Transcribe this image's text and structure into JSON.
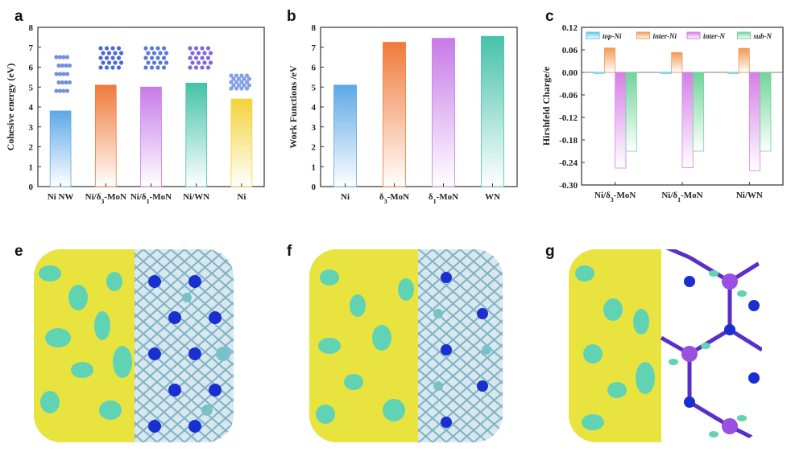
{
  "panels": {
    "a": "a",
    "b": "b",
    "c": "c",
    "e": "e",
    "f": "f",
    "g": "g"
  },
  "chart_data": [
    {
      "type": "bar",
      "title": "",
      "xlabel": "",
      "ylabel": "Cohesive energy (eV)",
      "categories": [
        "Ni NW",
        "Ni/δ3-MoN",
        "Ni/δ1-MoN",
        "Ni/WN",
        "Ni"
      ],
      "values": [
        3.8,
        5.1,
        5.0,
        5.2,
        4.4
      ],
      "colors": [
        "#5ea8e6",
        "#f07a3a",
        "#c77ae8",
        "#45c2a8",
        "#f3d23a"
      ],
      "ylim": [
        0,
        8
      ],
      "yticks": [
        0,
        1,
        2,
        3,
        4,
        5,
        6,
        7,
        8
      ]
    },
    {
      "type": "bar",
      "title": "",
      "xlabel": "",
      "ylabel": "Work Functions /eV",
      "categories": [
        "Ni",
        "δ3-MoN",
        "δ1-MoN",
        "WN"
      ],
      "values": [
        5.1,
        7.25,
        7.45,
        7.55
      ],
      "colors": [
        "#5ea8e6",
        "#f07a3a",
        "#c77ae8",
        "#45c2a8"
      ],
      "ylim": [
        0,
        8
      ],
      "yticks": [
        0,
        1,
        2,
        3,
        4,
        5,
        6,
        7,
        8
      ]
    },
    {
      "type": "bar",
      "title": "",
      "xlabel": "",
      "ylabel": "Hirshfeld Charge/e",
      "categories": [
        "Ni/δ3-MoN",
        "Ni/δ1-MoN",
        "Ni/WN"
      ],
      "ylim": [
        -0.3,
        0.12
      ],
      "yticks": [
        "0.12",
        "0.06",
        "0.00",
        "-0.06",
        "-0.12",
        "-0.18",
        "-0.24",
        "-0.30"
      ],
      "legend_position": "top",
      "series": [
        {
          "name": "top-Ni",
          "values": [
            -0.003,
            -0.003,
            -0.003
          ],
          "color": "#5ec8e6"
        },
        {
          "name": "inter-Ni",
          "values": [
            0.065,
            0.053,
            0.064
          ],
          "color": "#f29a55"
        },
        {
          "name": "inter-N",
          "values": [
            -0.255,
            -0.254,
            -0.262
          ],
          "color": "#d67ee8"
        },
        {
          "name": "sub-N",
          "values": [
            -0.21,
            -0.21,
            -0.21
          ],
          "color": "#6fd49a"
        }
      ]
    }
  ]
}
